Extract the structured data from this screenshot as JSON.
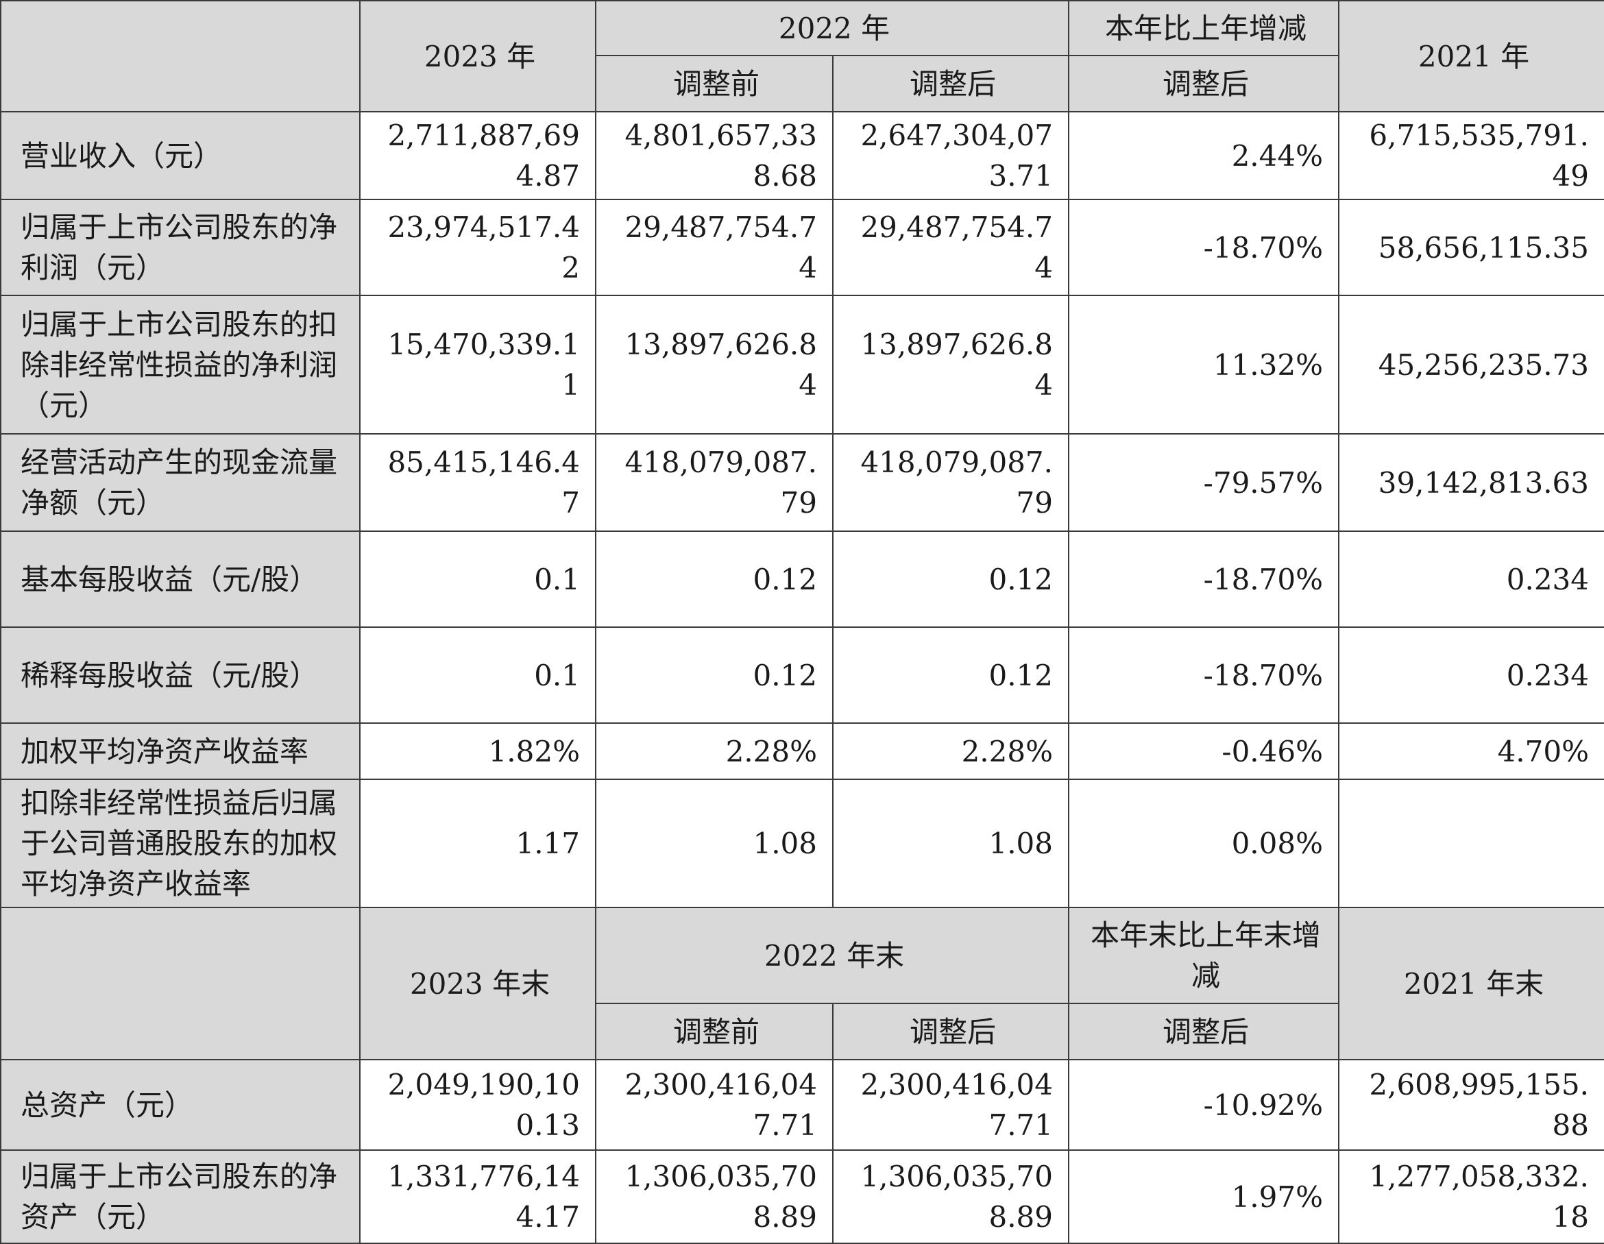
{
  "headers": {
    "y2023": "2023 年",
    "y2022": "2022 年",
    "change": "本年比上年增减",
    "y2021": "2021 年",
    "before": "调整前",
    "after": "调整后",
    "change_after": "调整后"
  },
  "rows": [
    {
      "label": "营业收入（元）",
      "v2023": "2,711,887,694.87",
      "v2022_before": "4,801,657,338.68",
      "v2022_after": "2,647,304,073.71",
      "change": "2.44%",
      "v2021": "6,715,535,791.49"
    },
    {
      "label": "归属于上市公司股东的净利润（元）",
      "v2023": "23,974,517.42",
      "v2022_before": "29,487,754.74",
      "v2022_after": "29,487,754.74",
      "change": "-18.70%",
      "v2021": "58,656,115.35"
    },
    {
      "label": "归属于上市公司股东的扣除非经常性损益的净利润（元）",
      "v2023": "15,470,339.11",
      "v2022_before": "13,897,626.84",
      "v2022_after": "13,897,626.84",
      "change": "11.32%",
      "v2021": "45,256,235.73"
    },
    {
      "label": "经营活动产生的现金流量净额（元）",
      "v2023": "85,415,146.47",
      "v2022_before": "418,079,087.79",
      "v2022_after": "418,079,087.79",
      "change": "-79.57%",
      "v2021": "39,142,813.63"
    },
    {
      "label": "基本每股收益（元/股）",
      "v2023": "0.1",
      "v2022_before": "0.12",
      "v2022_after": "0.12",
      "change": "-18.70%",
      "v2021": "0.234"
    },
    {
      "label": "稀释每股收益（元/股）",
      "v2023": "0.1",
      "v2022_before": "0.12",
      "v2022_after": "0.12",
      "change": "-18.70%",
      "v2021": "0.234"
    },
    {
      "label": "加权平均净资产收益率",
      "v2023": "1.82%",
      "v2022_before": "2.28%",
      "v2022_after": "2.28%",
      "change": "-0.46%",
      "v2021": "4.70%"
    },
    {
      "label": "扣除非经常性损益后归属于公司普通股股东的加权平均净资产收益率",
      "v2023": "1.17",
      "v2022_before": "1.08",
      "v2022_after": "1.08",
      "change": "0.08%",
      "v2021": ""
    }
  ],
  "headers2": {
    "y2023": "2023 年末",
    "y2022": "2022 年末",
    "change": "本年末比上年末增减",
    "y2021": "2021 年末",
    "before": "调整前",
    "after": "调整后",
    "change_after": "调整后"
  },
  "rows2": [
    {
      "label": "总资产（元）",
      "v2023": "2,049,190,100.13",
      "v2022_before": "2,300,416,047.71",
      "v2022_after": "2,300,416,047.71",
      "change": "-10.92%",
      "v2021": "2,608,995,155.88"
    },
    {
      "label": "归属于上市公司股东的净资产（元）",
      "v2023": "1,331,776,144.17",
      "v2022_before": "1,306,035,708.89",
      "v2022_after": "1,306,035,708.89",
      "change": "1.97%",
      "v2021": "1,277,058,332.18"
    }
  ]
}
